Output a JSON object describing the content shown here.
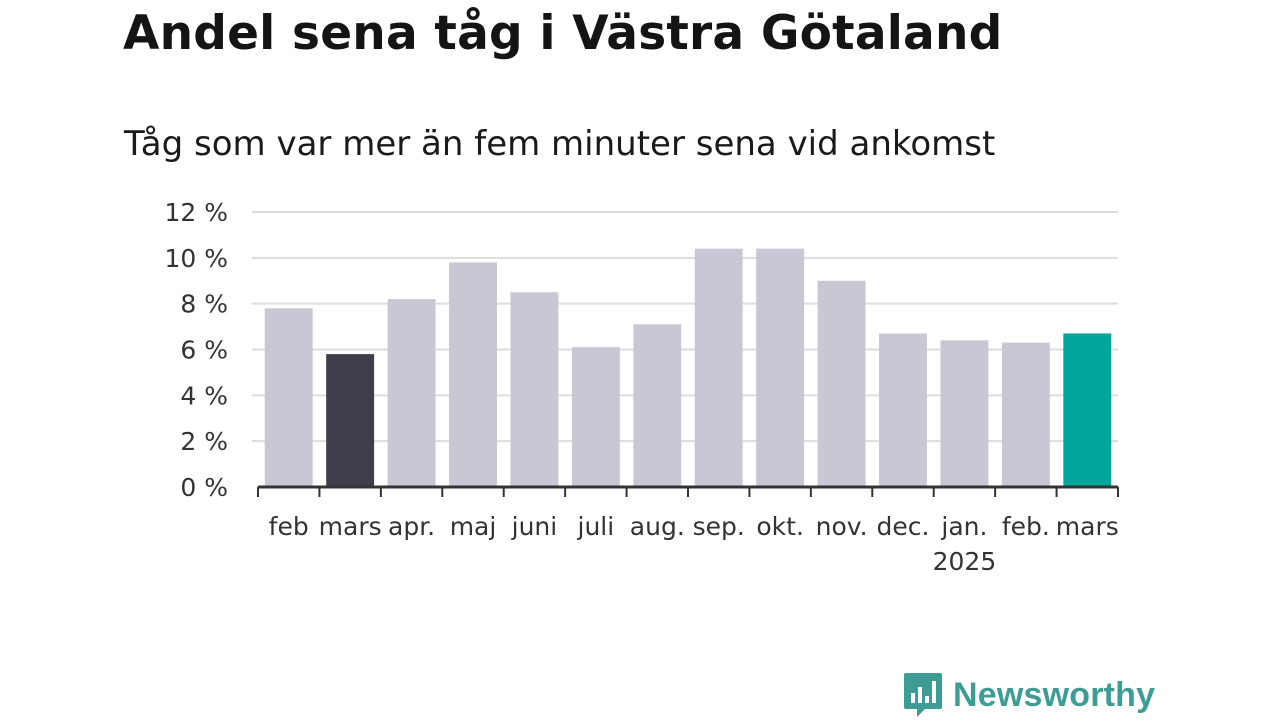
{
  "header": {
    "title": "Andel sena tåg i Västra Götaland",
    "subtitle": "Tåg som var mer än fem minuter sena vid ankomst"
  },
  "brand": {
    "name": "Newsworthy",
    "icon": "newsworthy-logo-icon",
    "color": "#3d9d95"
  },
  "colors": {
    "bar_default": "#c9c7d3",
    "bar_highlight_start": "#403e4a",
    "bar_latest": "#00a699",
    "grid": "#dddddd",
    "axis": "#333333"
  },
  "chart_data": {
    "type": "bar",
    "title": "Andel sena tåg i Västra Götaland",
    "subtitle": "Tåg som var mer än fem minuter sena vid ankomst",
    "categories": [
      "feb",
      "mars",
      "apr.",
      "maj",
      "juni",
      "juli",
      "aug.",
      "sep.",
      "okt.",
      "nov.",
      "dec.",
      "jan.",
      "feb.",
      "mars"
    ],
    "year_labels": [
      {
        "index": 11,
        "label": "2025"
      }
    ],
    "values": [
      7.8,
      5.8,
      8.2,
      9.8,
      8.5,
      6.1,
      7.1,
      10.4,
      10.4,
      9.0,
      6.7,
      6.4,
      6.3,
      6.7
    ],
    "highlight": {
      "1": "bar_highlight_start",
      "13": "bar_latest"
    },
    "ylim": [
      0,
      12
    ],
    "yticks": [
      0,
      2,
      4,
      6,
      8,
      10,
      12
    ],
    "ytick_labels": [
      "0 %",
      "2 %",
      "4 %",
      "6 %",
      "8 %",
      "10 %",
      "12 %"
    ],
    "grid": true,
    "legend": "none",
    "xlabel": "",
    "ylabel": ""
  }
}
